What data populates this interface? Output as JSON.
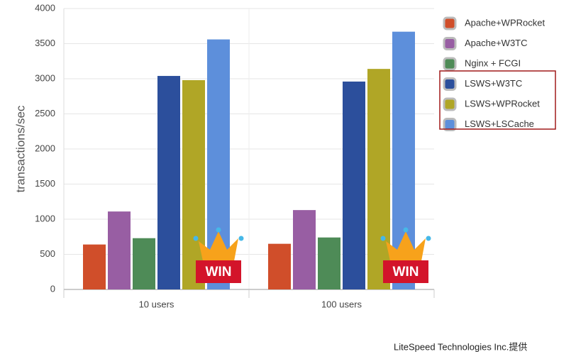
{
  "chart_data": {
    "type": "bar",
    "y_label": "transactions/sec",
    "categories": [
      "10 users",
      "100 users"
    ],
    "series": [
      {
        "name": "Apache+WPRocket",
        "color": "#d04e2a",
        "values": [
          640,
          650
        ]
      },
      {
        "name": "Apache+W3TC",
        "color": "#985ea3",
        "values": [
          1110,
          1130
        ]
      },
      {
        "name": "Nginx + FCGI",
        "color": "#4e8b57",
        "values": [
          730,
          740
        ]
      },
      {
        "name": "LSWS+W3TC",
        "color": "#2c4f9c",
        "values": [
          3040,
          2960
        ]
      },
      {
        "name": "LSWS+WPRocket",
        "color": "#b0a626",
        "values": [
          2980,
          3140
        ]
      },
      {
        "name": "LSWS+LSCache",
        "color": "#5d8fdb",
        "values": [
          3560,
          3670
        ]
      }
    ],
    "ylim": [
      0,
      4000
    ],
    "yticks": [
      0,
      500,
      1000,
      1500,
      2000,
      2500,
      3000,
      3500,
      4000
    ],
    "grid": true,
    "badge": "WIN",
    "source": "LiteSpeed Technologies Inc.提供"
  }
}
